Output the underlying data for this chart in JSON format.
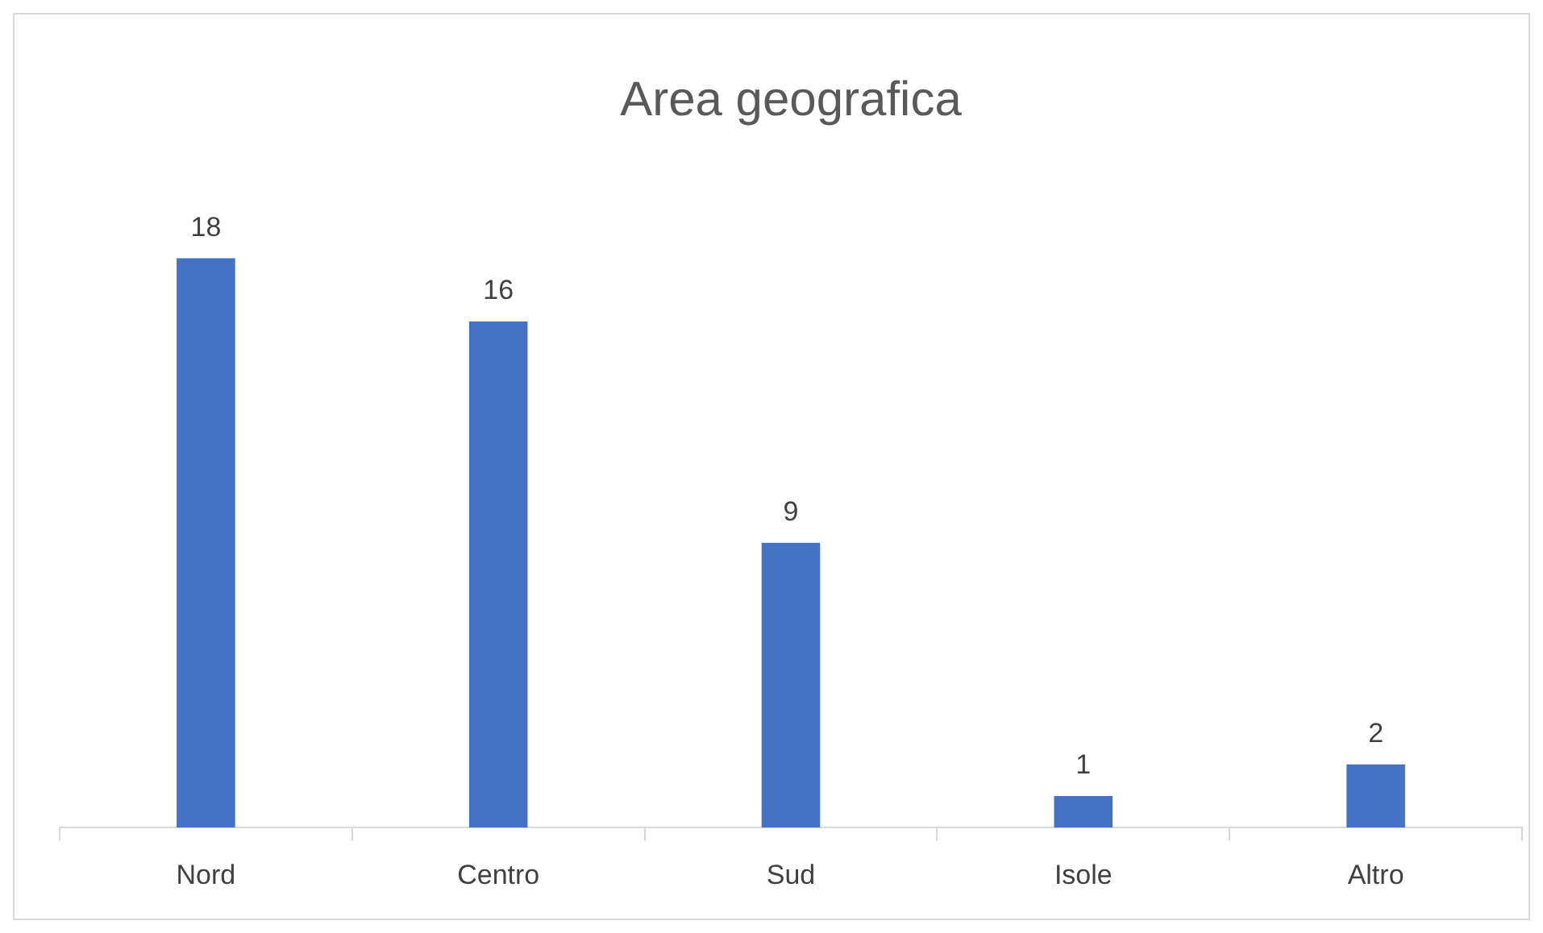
{
  "chart_data": {
    "type": "bar",
    "title": "Area geografica",
    "categories": [
      "Nord",
      "Centro",
      "Sud",
      "Isole",
      "Altro"
    ],
    "values": [
      18,
      16,
      9,
      1,
      2
    ],
    "color": "#4472c4",
    "data_labels": true,
    "grid": false,
    "legend": false
  }
}
